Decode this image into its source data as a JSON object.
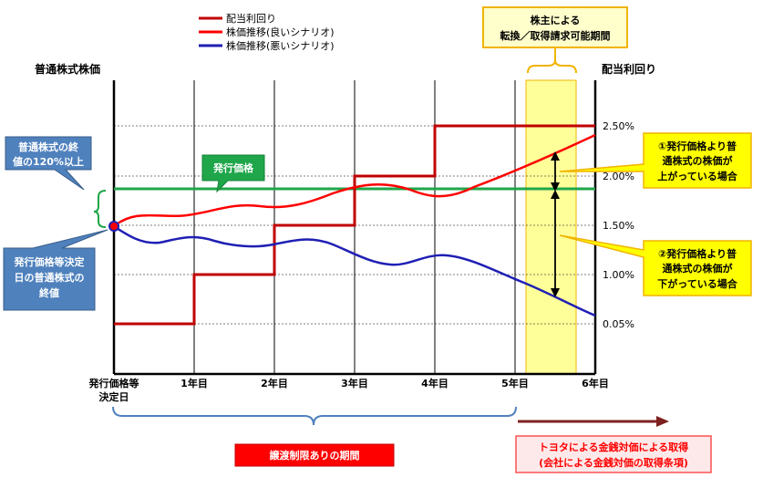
{
  "legend": [
    {
      "name": "配当利回り",
      "color": "#c00000"
    },
    {
      "name": "株価推移(良いシナリオ)",
      "color": "#ff0000"
    },
    {
      "name": "株価推移(悪いシナリオ)",
      "color": "#1f1fb4"
    }
  ],
  "top_callout": {
    "line1": "株主による",
    "line2": "転換／取得請求可能期間"
  },
  "left_axis_title": "普通株式株価",
  "right_axis_title": "配当利回り",
  "right_ticks": [
    "2.50%",
    "2.00%",
    "1.50%",
    "1.00%",
    "0.05%"
  ],
  "x_labels": {
    "start_line1": "発行価格等",
    "start_line2": "決定日",
    "years": [
      "1年目",
      "2年目",
      "3年目",
      "4年目",
      "5年目",
      "6年目"
    ]
  },
  "callout_120": {
    "line1": "普通株式の終",
    "line2": "値の120%以上"
  },
  "callout_issue_price": {
    "label": "発行価格"
  },
  "callout_base": {
    "line1": "発行価格等決定",
    "line2": "日の普通株式の",
    "line3": "終値"
  },
  "callout_up": {
    "line1": "①発行価格より普",
    "line2": "通株式の株価が",
    "line3": "上がっている場合"
  },
  "callout_down": {
    "line1": "②発行価格より普",
    "line2": "通株式の株価が",
    "line3": "下がっている場合"
  },
  "bottom_restriction": "譲渡制限ありの期間",
  "bottom_acquisition": {
    "line1": "トヨタによる金銭対価による取得",
    "line2": "(会社による金銭対価の取得条項)"
  },
  "colors": {
    "dividend": "#c00000",
    "good": "#ff0000",
    "bad": "#1f1fb4",
    "issue_line": "#1fa64a",
    "blue_box": "#4f81bd",
    "yellow_box": "#ffff99",
    "yellow_border": "#f0b400"
  }
}
